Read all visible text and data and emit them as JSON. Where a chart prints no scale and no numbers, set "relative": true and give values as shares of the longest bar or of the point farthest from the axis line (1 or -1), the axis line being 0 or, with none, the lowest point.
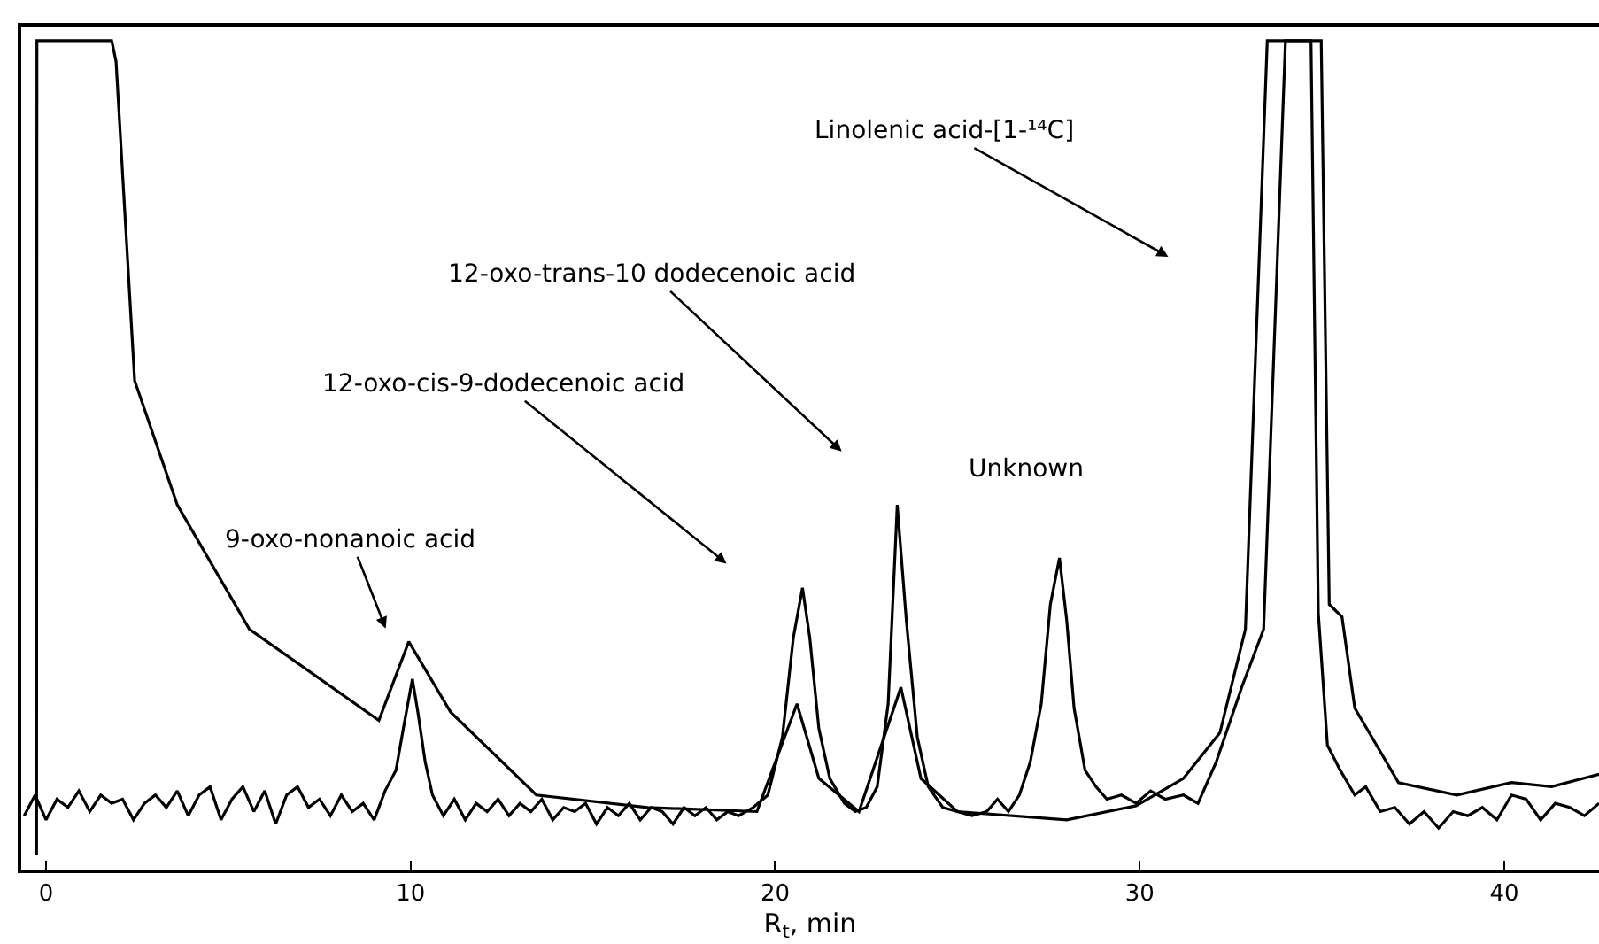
{
  "chart_data": {
    "type": "line",
    "relative": true,
    "xlabel": "R$_{t}$, min",
    "xlim": [
      -0.68,
      42.6
    ],
    "xticks": [
      0,
      10,
      20,
      30,
      40
    ],
    "tick_labels": "x",
    "marker": "none",
    "line_style": "solid",
    "series": [
      {
        "color": "#000000",
        "x": [
          -0.26,
          -0.25,
          1.8,
          1.92,
          2.43,
          3.6,
          5.58,
          9.13,
          9.95,
          11.1,
          13.45,
          16.5,
          19.5,
          20.6,
          21.2,
          22.3,
          23.45,
          24.0,
          25.0,
          28.0,
          29.9,
          31.2,
          32.2,
          32.9,
          33.5,
          34.98,
          35.2,
          35.55,
          35.9,
          37.1,
          38.7,
          40.2,
          41.3,
          42.6
        ],
        "values": [
          0.017,
          1,
          1,
          0.975,
          0.59,
          0.44,
          0.29,
          0.18,
          0.275,
          0.19,
          0.09,
          0.075,
          0.07,
          0.2,
          0.11,
          0.07,
          0.22,
          0.11,
          0.07,
          0.06,
          0.077,
          0.11,
          0.165,
          0.29,
          1,
          1,
          0.32,
          0.305,
          0.195,
          0.105,
          0.09,
          0.105,
          0.1,
          0.115
        ]
      },
      {
        "color": "#000000",
        "x": [
          -0.6,
          -0.3,
          0,
          0.3,
          0.6,
          0.9,
          1.2,
          1.5,
          1.8,
          2.1,
          2.4,
          2.7,
          3.0,
          3.3,
          3.6,
          3.9,
          4.2,
          4.5,
          4.8,
          5.1,
          5.4,
          5.7,
          6.0,
          6.3,
          6.6,
          6.9,
          7.2,
          7.5,
          7.8,
          8.1,
          8.4,
          8.7,
          9.0,
          9.3,
          9.6,
          9.8,
          10.05,
          10.2,
          10.4,
          10.6,
          10.9,
          11.2,
          11.5,
          11.8,
          12.1,
          12.4,
          12.7,
          13.0,
          13.3,
          13.6,
          13.9,
          14.2,
          14.5,
          14.8,
          15.1,
          15.4,
          15.7,
          16.0,
          16.3,
          16.6,
          16.9,
          17.2,
          17.5,
          17.8,
          18.1,
          18.4,
          18.7,
          19.0,
          19.4,
          19.8,
          20.2,
          20.5,
          20.75,
          20.95,
          21.2,
          21.5,
          21.9,
          22.2,
          22.5,
          22.8,
          23.1,
          23.35,
          23.6,
          23.9,
          24.2,
          24.6,
          25.0,
          25.4,
          25.8,
          26.1,
          26.4,
          26.7,
          27.0,
          27.3,
          27.55,
          27.8,
          28.0,
          28.2,
          28.5,
          28.8,
          29.1,
          29.5,
          29.9,
          30.3,
          30.7,
          31.2,
          31.6,
          32.1,
          32.8,
          33.4,
          34.0,
          34.7,
          34.9,
          35.15,
          35.5,
          35.9,
          36.2,
          36.6,
          37.0,
          37.4,
          37.8,
          38.2,
          38.6,
          39.0,
          39.4,
          39.8,
          40.2,
          40.6,
          41.0,
          41.4,
          41.8,
          42.2,
          42.6
        ],
        "values": [
          0.065,
          0.09,
          0.06,
          0.085,
          0.075,
          0.095,
          0.07,
          0.09,
          0.08,
          0.085,
          0.06,
          0.08,
          0.09,
          0.075,
          0.095,
          0.065,
          0.09,
          0.1,
          0.06,
          0.085,
          0.1,
          0.07,
          0.095,
          0.055,
          0.09,
          0.1,
          0.075,
          0.085,
          0.065,
          0.09,
          0.07,
          0.08,
          0.06,
          0.095,
          0.12,
          0.17,
          0.23,
          0.19,
          0.13,
          0.09,
          0.065,
          0.085,
          0.06,
          0.08,
          0.07,
          0.085,
          0.065,
          0.08,
          0.07,
          0.085,
          0.06,
          0.075,
          0.07,
          0.08,
          0.055,
          0.075,
          0.065,
          0.08,
          0.06,
          0.075,
          0.07,
          0.055,
          0.075,
          0.065,
          0.075,
          0.06,
          0.07,
          0.065,
          0.075,
          0.09,
          0.16,
          0.28,
          0.34,
          0.28,
          0.17,
          0.11,
          0.08,
          0.07,
          0.075,
          0.1,
          0.2,
          0.44,
          0.3,
          0.16,
          0.1,
          0.075,
          0.07,
          0.065,
          0.07,
          0.085,
          0.07,
          0.09,
          0.13,
          0.2,
          0.32,
          0.376,
          0.3,
          0.195,
          0.12,
          0.1,
          0.085,
          0.09,
          0.08,
          0.095,
          0.085,
          0.09,
          0.08,
          0.13,
          0.22,
          0.29,
          1,
          1,
          0.31,
          0.15,
          0.12,
          0.09,
          0.1,
          0.07,
          0.075,
          0.055,
          0.07,
          0.05,
          0.07,
          0.065,
          0.075,
          0.06,
          0.09,
          0.085,
          0.06,
          0.08,
          0.075,
          0.065,
          0.08
        ]
      }
    ],
    "annotations": [
      "Linolenic acid-[1-¹⁴C]",
      "12-oxo-trans-10 dodecenoic acid",
      "12-oxo-cis-9-dodecenoic acid",
      "9-oxo-nonanoic acid",
      "Unknown"
    ]
  }
}
